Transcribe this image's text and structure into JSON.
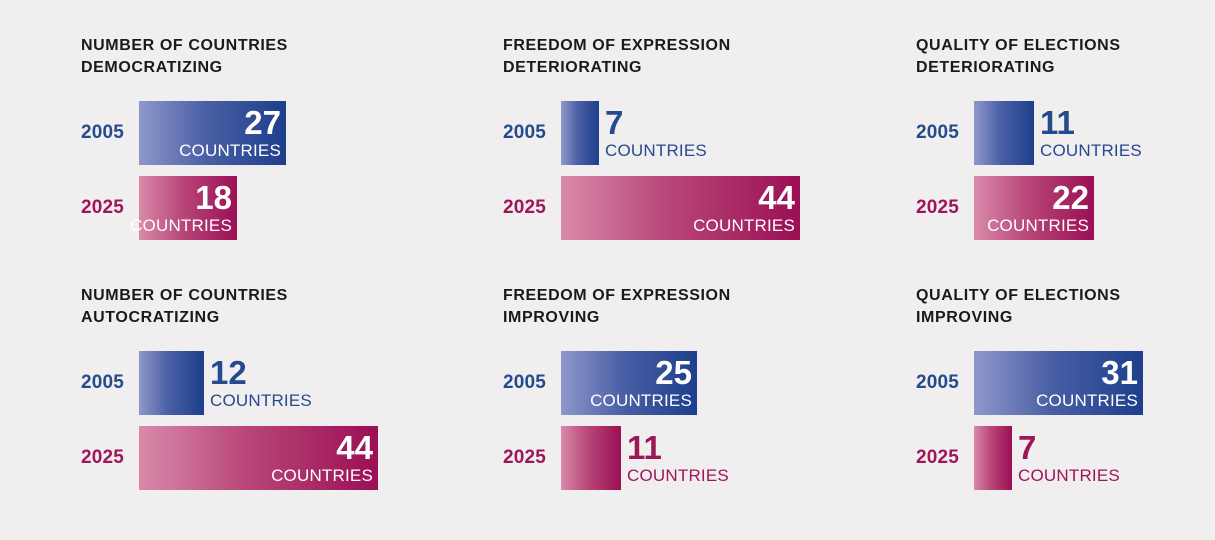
{
  "chart_data": {
    "type": "bar",
    "unit_label": "COUNTRIES",
    "scale_max": 50,
    "colors": {
      "y2005": "#1d3f8c",
      "y2025": "#9b0f55"
    },
    "panels": [
      {
        "id": "democratizing",
        "title_lines": [
          "NUMBER OF COUNTRIES",
          "DEMOCRATIZING"
        ],
        "series": [
          {
            "name": "2005",
            "value": 27
          },
          {
            "name": "2025",
            "value": 18
          }
        ]
      },
      {
        "id": "foe-deteriorating",
        "title_lines": [
          "FREEDOM OF EXPRESSION",
          "DETERIORATING"
        ],
        "series": [
          {
            "name": "2005",
            "value": 7
          },
          {
            "name": "2025",
            "value": 44
          }
        ]
      },
      {
        "id": "elections-deteriorating",
        "title_lines": [
          "QUALITY OF ELECTIONS",
          "DETERIORATING"
        ],
        "series": [
          {
            "name": "2005",
            "value": 11
          },
          {
            "name": "2025",
            "value": 22
          }
        ]
      },
      {
        "id": "autocratizing",
        "title_lines": [
          "NUMBER OF COUNTRIES",
          "AUTOCRATIZING"
        ],
        "series": [
          {
            "name": "2005",
            "value": 12
          },
          {
            "name": "2025",
            "value": 44
          }
        ]
      },
      {
        "id": "foe-improving",
        "title_lines": [
          "FREEDOM OF EXPRESSION",
          "IMPROVING"
        ],
        "series": [
          {
            "name": "2005",
            "value": 25
          },
          {
            "name": "2025",
            "value": 11
          }
        ]
      },
      {
        "id": "elections-improving",
        "title_lines": [
          "QUALITY OF ELECTIONS",
          "IMPROVING"
        ],
        "series": [
          {
            "name": "2005",
            "value": 31
          },
          {
            "name": "2025",
            "value": 7
          }
        ]
      }
    ]
  }
}
